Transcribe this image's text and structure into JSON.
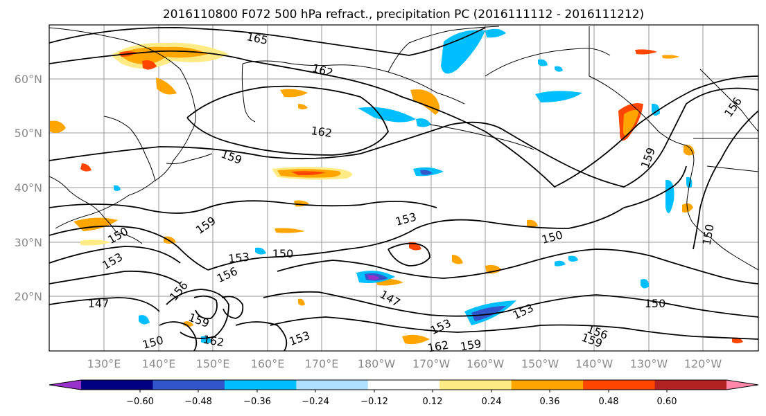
{
  "title": "2016110800 F072 500 hPa refract., precipitation PC (2016111112 - 2016111212)",
  "lat_ticks": [
    "60°N",
    "50°N",
    "40°N",
    "30°N",
    "20°N"
  ],
  "lon_ticks": [
    "130°E",
    "140°E",
    "150°E",
    "160°E",
    "170°E",
    "180°W",
    "170°W",
    "160°W",
    "150°W",
    "140°W",
    "130°W",
    "120°W"
  ],
  "colorbar": {
    "colors": [
      "#9932cc",
      "#000080",
      "#3355cc",
      "#00bfff",
      "#b0e0ff",
      "#ffffff",
      "#ffeb85",
      "#ffa500",
      "#ff4500",
      "#b22222",
      "#ff88aa"
    ],
    "tick_labels": [
      "−0.60",
      "−0.48",
      "−0.36",
      "−0.24",
      "−0.12",
      "0.12",
      "0.24",
      "0.36",
      "0.48",
      "0.60"
    ]
  },
  "contour_labels": [
    {
      "text": "165",
      "value": 165
    },
    {
      "text": "162",
      "value": 162
    },
    {
      "text": "162",
      "value": 162
    },
    {
      "text": "159",
      "value": 159
    },
    {
      "text": "159",
      "value": 159
    },
    {
      "text": "159",
      "value": 159
    },
    {
      "text": "156",
      "value": 156
    },
    {
      "text": "153",
      "value": 153
    },
    {
      "text": "153",
      "value": 153
    },
    {
      "text": "150",
      "value": 150
    },
    {
      "text": "150",
      "value": 150
    },
    {
      "text": "150",
      "value": 150
    },
    {
      "text": "150",
      "value": 150
    },
    {
      "text": "147",
      "value": 147
    },
    {
      "text": "147",
      "value": 147
    },
    {
      "text": "153",
      "value": 153
    },
    {
      "text": "156",
      "value": 156
    },
    {
      "text": "156",
      "value": 156
    },
    {
      "text": "159",
      "value": 159
    },
    {
      "text": "162",
      "value": 162
    },
    {
      "text": "153",
      "value": 153
    },
    {
      "text": "153",
      "value": 153
    },
    {
      "text": "150",
      "value": 150
    },
    {
      "text": "150",
      "value": 150
    },
    {
      "text": "162",
      "value": 162
    },
    {
      "text": "159",
      "value": 159
    },
    {
      "text": "156",
      "value": 156
    },
    {
      "text": "159",
      "value": 159
    },
    {
      "text": "153",
      "value": 153
    }
  ]
}
